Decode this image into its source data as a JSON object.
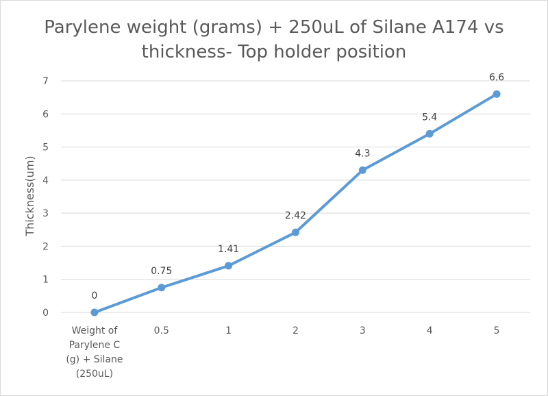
{
  "chart_data": {
    "type": "line",
    "title_lines": [
      "Parylene weight (grams) + 250uL of Silane A174 vs",
      "thickness- Top holder position"
    ],
    "xlabel": "",
    "ylabel": "Thickness(um)",
    "categories": [
      [
        "Weight of",
        "Parylene C",
        "(g) + Silane",
        "(250uL)"
      ],
      [
        "0.5"
      ],
      [
        "1"
      ],
      [
        "2"
      ],
      [
        "3"
      ],
      [
        "4"
      ],
      [
        "5"
      ]
    ],
    "series": [
      {
        "values": [
          0,
          0.75,
          1.41,
          2.42,
          4.3,
          5.4,
          6.6
        ],
        "labels": [
          "0",
          "0.75",
          "1.41",
          "2.42",
          "4.3",
          "5.4",
          "6.6"
        ]
      }
    ],
    "ylim": [
      0,
      7
    ],
    "yticks": [
      "0",
      "1",
      "2",
      "3",
      "4",
      "5",
      "6",
      "7"
    ],
    "grid": true,
    "legend": "none",
    "colors": {
      "line": "#5b9bd5",
      "grid": "#d9d9d9",
      "text": "#595959"
    }
  }
}
